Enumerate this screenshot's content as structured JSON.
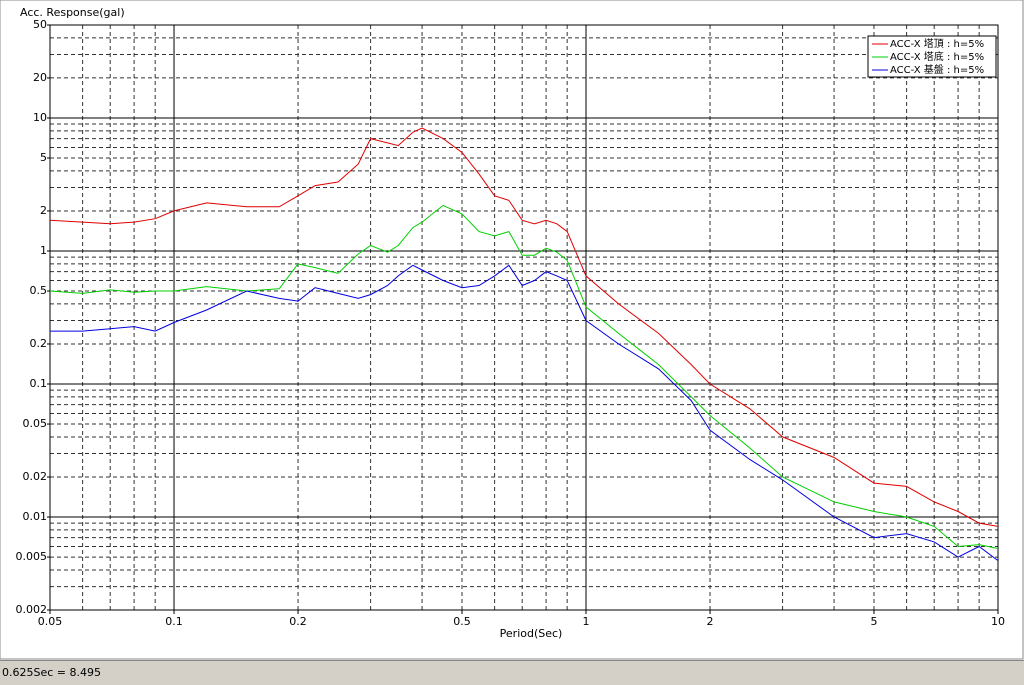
{
  "chart_data": {
    "type": "line",
    "title": "Acc. Response(gal)",
    "x_label": "Period(Sec)",
    "xscale": "log",
    "yscale": "log",
    "grid": true,
    "legend": "upper right",
    "xlim": [
      0.05,
      10
    ],
    "ylim": [
      0.002,
      50
    ],
    "xticks": [
      0.05,
      0.1,
      0.2,
      0.5,
      1,
      2,
      5,
      10
    ],
    "yticks": [
      0.002,
      0.005,
      0.01,
      0.02,
      0.05,
      0.1,
      0.2,
      0.5,
      1,
      2,
      5,
      10,
      20,
      50
    ],
    "x": [
      0.05,
      0.06,
      0.07,
      0.08,
      0.09,
      0.1,
      0.12,
      0.15,
      0.18,
      0.2,
      0.22,
      0.25,
      0.28,
      0.3,
      0.33,
      0.35,
      0.38,
      0.4,
      0.45,
      0.5,
      0.55,
      0.6,
      0.65,
      0.7,
      0.75,
      0.8,
      0.85,
      0.9,
      1,
      1.2,
      1.5,
      1.8,
      2,
      2.5,
      3,
      4,
      5,
      6,
      7,
      8,
      9,
      10
    ],
    "series": [
      {
        "name": "ACC-X 塔頂 : h=5%",
        "color": "#e00000",
        "values": [
          1.7,
          1.65,
          1.6,
          1.65,
          1.75,
          2.0,
          2.3,
          2.15,
          2.15,
          2.6,
          3.1,
          3.3,
          4.5,
          7.0,
          6.5,
          6.2,
          7.8,
          8.4,
          7.0,
          5.5,
          3.8,
          2.6,
          2.4,
          1.7,
          1.6,
          1.7,
          1.6,
          1.4,
          0.65,
          0.4,
          0.24,
          0.14,
          0.1,
          0.065,
          0.04,
          0.028,
          0.018,
          0.017,
          0.013,
          0.011,
          0.009,
          0.0085
        ]
      },
      {
        "name": "ACC-X 塔底 : h=5%",
        "color": "#00d000",
        "values": [
          0.5,
          0.48,
          0.51,
          0.49,
          0.5,
          0.5,
          0.54,
          0.5,
          0.52,
          0.8,
          0.75,
          0.68,
          0.95,
          1.1,
          0.98,
          1.1,
          1.5,
          1.65,
          2.2,
          1.9,
          1.4,
          1.3,
          1.4,
          0.93,
          0.93,
          1.05,
          0.98,
          0.85,
          0.38,
          0.24,
          0.14,
          0.08,
          0.058,
          0.033,
          0.02,
          0.013,
          0.011,
          0.01,
          0.0085,
          0.006,
          0.0062,
          0.0058
        ]
      },
      {
        "name": "ACC-X 基盤 : h=5%",
        "color": "#0000e0",
        "values": [
          0.25,
          0.25,
          0.26,
          0.27,
          0.25,
          0.29,
          0.36,
          0.5,
          0.44,
          0.42,
          0.53,
          0.48,
          0.44,
          0.47,
          0.55,
          0.65,
          0.78,
          0.72,
          0.6,
          0.53,
          0.55,
          0.65,
          0.78,
          0.55,
          0.6,
          0.7,
          0.65,
          0.6,
          0.3,
          0.2,
          0.13,
          0.075,
          0.045,
          0.027,
          0.019,
          0.01,
          0.007,
          0.0075,
          0.0065,
          0.005,
          0.006,
          0.0047
        ]
      }
    ]
  },
  "status_bar": "0.625Sec = 8.495"
}
